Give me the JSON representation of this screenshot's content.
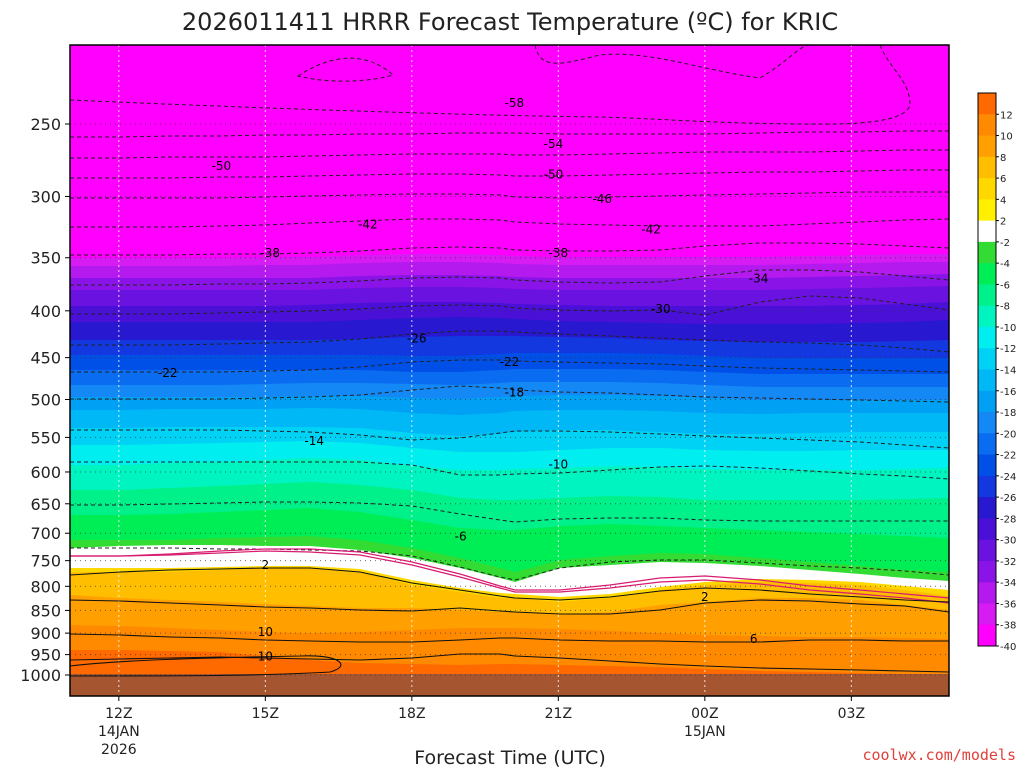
{
  "chart_data": {
    "type": "heatmap",
    "title": "2026011411 HRRR Forecast Temperature (ºC) for KRIC",
    "xlabel": "Forecast Time (UTC)",
    "ylabel": "",
    "x_ticks": [
      {
        "label": "12Z",
        "sub": [
          "14JAN",
          "2026"
        ],
        "hour": 12
      },
      {
        "label": "15Z",
        "sub": [],
        "hour": 15
      },
      {
        "label": "18Z",
        "sub": [],
        "hour": 18
      },
      {
        "label": "21Z",
        "sub": [],
        "hour": 21
      },
      {
        "label": "00Z",
        "sub": [
          "15JAN"
        ],
        "hour": 24
      },
      {
        "label": "03Z",
        "sub": [],
        "hour": 27
      }
    ],
    "x_range_hours": [
      11,
      29
    ],
    "y_ticks": [
      250,
      300,
      350,
      400,
      450,
      500,
      550,
      600,
      650,
      700,
      750,
      800,
      850,
      900,
      950,
      1000
    ],
    "y_range_hpa": [
      200,
      1025
    ],
    "colorbar": {
      "ticks": [
        12,
        10,
        8,
        6,
        4,
        2,
        -2,
        -4,
        -6,
        -8,
        -10,
        -12,
        -14,
        -16,
        -18,
        -20,
        -22,
        -24,
        -26,
        -28,
        -30,
        -32,
        -34,
        -36,
        -38,
        -40
      ],
      "colors": [
        "#ff6a00",
        "#ff8a00",
        "#ffa000",
        "#ffbe00",
        "#ffd800",
        "#fff000",
        "#ffffff",
        "#32dc32",
        "#00ee55",
        "#00f08a",
        "#00f4c0",
        "#00eef0",
        "#00d2f5",
        "#00b8f5",
        "#00a0f5",
        "#1488f5",
        "#0a6cf0",
        "#0050e8",
        "#1438e0",
        "#2818d0",
        "#4a10d8",
        "#6a12e0",
        "#8a14e8",
        "#b41aee",
        "#d61cf2",
        "#ff00ff"
      ]
    },
    "isotherm_labels": [
      {
        "text": "-58",
        "hour": 20.1,
        "hpa": 237
      },
      {
        "text": "-54",
        "hour": 20.9,
        "hpa": 263
      },
      {
        "text": "-50",
        "hour": 14.1,
        "hpa": 278
      },
      {
        "text": "-50",
        "hour": 20.9,
        "hpa": 284
      },
      {
        "text": "-46",
        "hour": 21.9,
        "hpa": 302
      },
      {
        "text": "-42",
        "hour": 17.1,
        "hpa": 322
      },
      {
        "text": "-42",
        "hour": 22.9,
        "hpa": 326
      },
      {
        "text": "-38",
        "hour": 15.1,
        "hpa": 346
      },
      {
        "text": "-38",
        "hour": 21.0,
        "hpa": 346
      },
      {
        "text": "-34",
        "hour": 25.1,
        "hpa": 369
      },
      {
        "text": "-30",
        "hour": 23.1,
        "hpa": 398
      },
      {
        "text": "-26",
        "hour": 18.1,
        "hpa": 429
      },
      {
        "text": "-22",
        "hour": 13.0,
        "hpa": 468
      },
      {
        "text": "-22",
        "hour": 20.0,
        "hpa": 455
      },
      {
        "text": "-18",
        "hour": 20.1,
        "hpa": 491
      },
      {
        "text": "-14",
        "hour": 16.0,
        "hpa": 555
      },
      {
        "text": "-10",
        "hour": 21.0,
        "hpa": 589
      },
      {
        "text": "-6",
        "hour": 19.0,
        "hpa": 706
      },
      {
        "text": "2",
        "hour": 15.0,
        "hpa": 758
      },
      {
        "text": "2",
        "hour": 24.0,
        "hpa": 822
      },
      {
        "text": "10",
        "hour": 15.0,
        "hpa": 898
      },
      {
        "text": "10",
        "hour": 15.0,
        "hpa": 955
      },
      {
        "text": "6",
        "hour": 25.0,
        "hpa": 913
      }
    ]
  },
  "credit": "coolwx.com/models"
}
